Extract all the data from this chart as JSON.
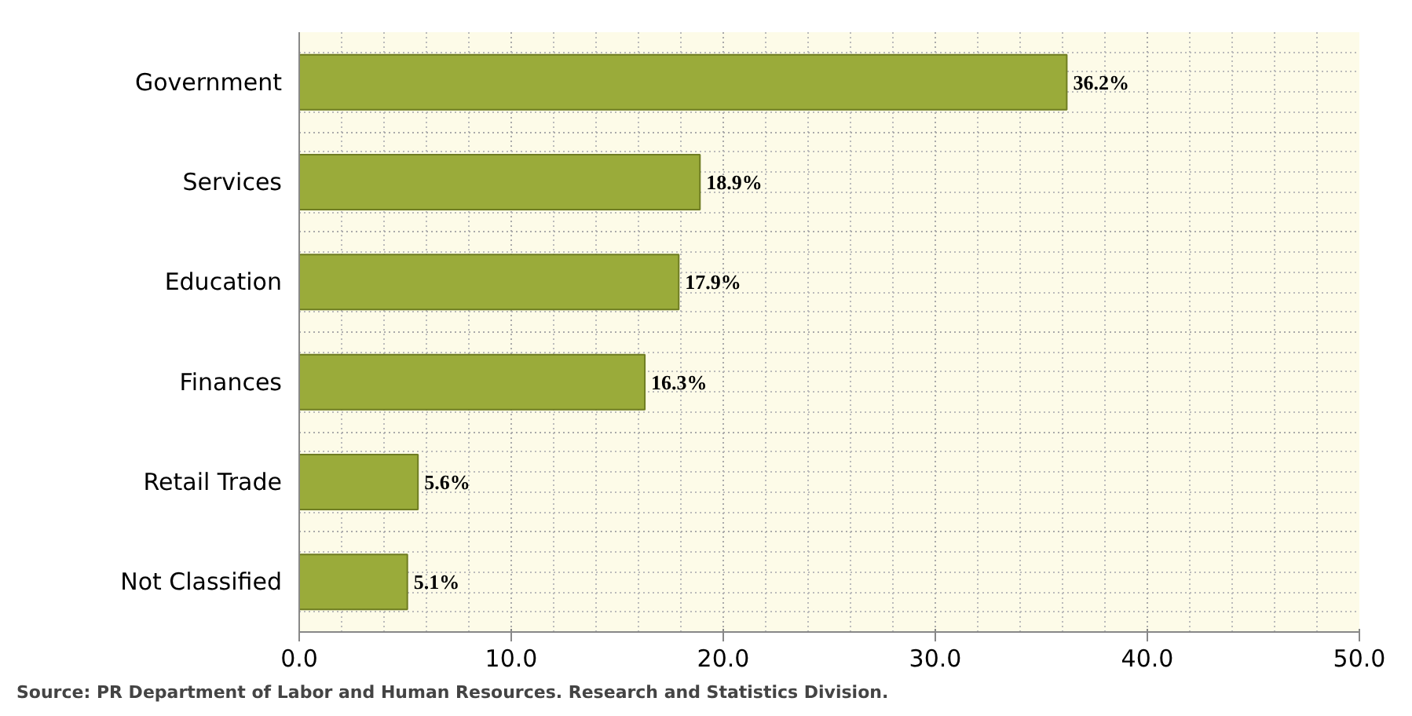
{
  "chart_data": {
    "type": "bar",
    "orientation": "horizontal",
    "categories": [
      "Government",
      "Services",
      "Education",
      "Finances",
      "Retail Trade",
      "Not Classified"
    ],
    "values": [
      36.2,
      18.9,
      17.9,
      16.3,
      5.6,
      5.1
    ],
    "value_labels": [
      "36.2%",
      "18.9%",
      "17.9%",
      "16.3%",
      "5.6%",
      "5.1%"
    ],
    "color": "#9aab3a",
    "xlim": [
      0,
      50
    ],
    "xticks": [
      {
        "value": 0,
        "label": "0.0"
      },
      {
        "value": 10,
        "label": "10.0"
      },
      {
        "value": 20,
        "label": "20.0"
      },
      {
        "value": 30,
        "label": "30.0"
      },
      {
        "value": 40,
        "label": "40.0"
      },
      {
        "value": 50,
        "label": "50.0"
      }
    ],
    "grid": true,
    "annotations": [
      "Source: PR Department of Labor and Human Resources. Research and Statistics Division."
    ]
  }
}
